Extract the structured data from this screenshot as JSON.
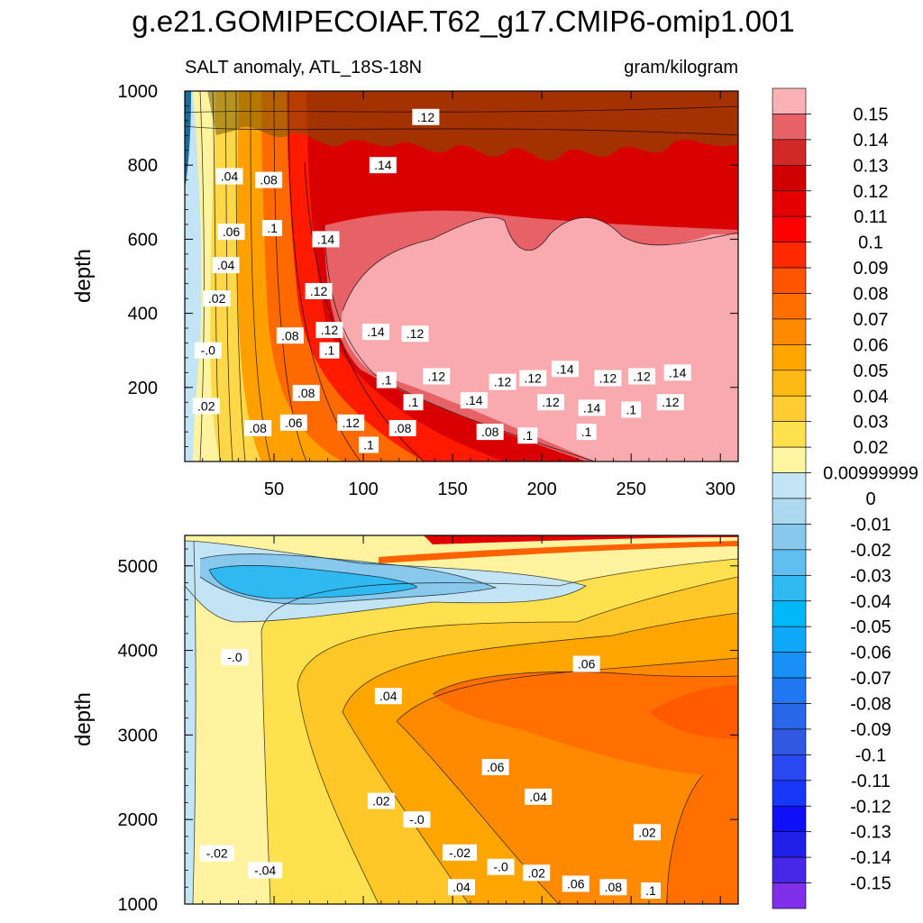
{
  "title": "g.e21.GOMIPECOIAF.T62_g17.CMIP6-omip1.001",
  "subtitle_left": "SALT anomaly, ATL_18S-18N",
  "subtitle_right": "gram/kilogram",
  "colors": {
    "background": "#ffffff",
    "frame": "#000000",
    "pink": "#f8aaae"
  },
  "colorbar": {
    "labels": [
      "0.15",
      "0.14",
      "0.13",
      "0.12",
      "0.11",
      "0.1",
      "0.09",
      "0.08",
      "0.07",
      "0.06",
      "0.05",
      "0.04",
      "0.03",
      "0.02",
      "0.00999999",
      "0",
      "-0.01",
      "-0.02",
      "-0.03",
      "-0.04",
      "-0.05",
      "-0.06",
      "-0.07",
      "-0.08",
      "-0.09",
      "-0.1",
      "-0.11",
      "-0.12",
      "-0.13",
      "-0.14",
      "-0.15"
    ],
    "colors": [
      "#fbb0b4",
      "#e66266",
      "#d12828",
      "#cf0000",
      "#e50000",
      "#ff0000",
      "#ff2a00",
      "#ff5400",
      "#ff6f00",
      "#ff8a00",
      "#ffa500",
      "#ffb914",
      "#ffcc33",
      "#ffe150",
      "#fff4a0",
      "#c3e4f4",
      "#acd8f0",
      "#88c8ec",
      "#60bef0",
      "#30b8f0",
      "#00b8f8",
      "#10a8f8",
      "#1890f8",
      "#2078f0",
      "#2868e8",
      "#3058e0",
      "#2848f0",
      "#1838f8",
      "#1010f8",
      "#2020e8",
      "#4828e8",
      "#8030e8"
    ]
  },
  "chart_data": [
    {
      "type": "contour",
      "panel": "upper",
      "xlabel": "",
      "ylabel": "depth",
      "xlim": [
        0,
        310
      ],
      "ylim": [
        1000,
        0
      ],
      "xticks": [
        "50",
        "100",
        "150",
        "200",
        "250",
        "300"
      ],
      "yticks": [
        "200",
        "400",
        "600",
        "800",
        "1000"
      ],
      "contour_labels": [
        {
          "text": ".1",
          "x": 103,
          "y": 45
        },
        {
          "text": ".08",
          "x": 41,
          "y": 90
        },
        {
          "text": ".06",
          "x": 61,
          "y": 105
        },
        {
          "text": ".12",
          "x": 93,
          "y": 105
        },
        {
          "text": ".08",
          "x": 122,
          "y": 90
        },
        {
          "text": ".08",
          "x": 171,
          "y": 80
        },
        {
          "text": ".1",
          "x": 192,
          "y": 70
        },
        {
          "text": ".1",
          "x": 225,
          "y": 80
        },
        {
          "text": ".02",
          "x": 12,
          "y": 150
        },
        {
          "text": ".1",
          "x": 128,
          "y": 160
        },
        {
          "text": ".14",
          "x": 162,
          "y": 165
        },
        {
          "text": ".12",
          "x": 205,
          "y": 160
        },
        {
          "text": ".14",
          "x": 228,
          "y": 145
        },
        {
          "text": ".1",
          "x": 250,
          "y": 140
        },
        {
          "text": ".12",
          "x": 272,
          "y": 160
        },
        {
          "text": ".08",
          "x": 68,
          "y": 185
        },
        {
          "text": ".1",
          "x": 113,
          "y": 220
        },
        {
          "text": ".12",
          "x": 141,
          "y": 230
        },
        {
          "text": ".12",
          "x": 178,
          "y": 215
        },
        {
          "text": ".12",
          "x": 195,
          "y": 225
        },
        {
          "text": ".12",
          "x": 237,
          "y": 225
        },
        {
          "text": ".12",
          "x": 256,
          "y": 230
        },
        {
          "text": ".14",
          "x": 276,
          "y": 240
        },
        {
          "text": ".14",
          "x": 213,
          "y": 250
        },
        {
          "text": "-.0",
          "x": 13,
          "y": 300
        },
        {
          "text": ".1",
          "x": 81,
          "y": 300
        },
        {
          "text": ".08",
          "x": 59,
          "y": 340
        },
        {
          "text": ".12",
          "x": 81,
          "y": 355
        },
        {
          "text": ".14",
          "x": 107,
          "y": 350
        },
        {
          "text": ".12",
          "x": 129,
          "y": 345
        },
        {
          "text": ".02",
          "x": 18,
          "y": 440
        },
        {
          "text": ".12",
          "x": 75,
          "y": 460
        },
        {
          "text": ".04",
          "x": 23,
          "y": 530
        },
        {
          "text": ".14",
          "x": 79,
          "y": 600
        },
        {
          "text": ".06",
          "x": 26,
          "y": 620
        },
        {
          "text": ".1",
          "x": 49,
          "y": 630
        },
        {
          "text": ".04",
          "x": 25,
          "y": 770
        },
        {
          "text": ".08",
          "x": 47,
          "y": 760
        },
        {
          "text": ".14",
          "x": 111,
          "y": 800
        },
        {
          "text": ".12",
          "x": 135,
          "y": 930
        }
      ]
    },
    {
      "type": "contour",
      "panel": "lower",
      "xlabel": "",
      "ylabel": "depth",
      "xlim": [
        0,
        310
      ],
      "ylim": [
        5360,
        1000
      ],
      "yticks": [
        "1000",
        "2000",
        "3000",
        "4000",
        "5000"
      ],
      "contour_labels": [
        {
          "text": ".04",
          "x": 155,
          "y": 1200
        },
        {
          "text": ".06",
          "x": 219,
          "y": 1240
        },
        {
          "text": ".08",
          "x": 240,
          "y": 1200
        },
        {
          "text": ".1",
          "x": 261,
          "y": 1160
        },
        {
          "text": "-.04",
          "x": 45,
          "y": 1400
        },
        {
          "text": "-.0",
          "x": 177,
          "y": 1440
        },
        {
          "text": ".02",
          "x": 197,
          "y": 1370
        },
        {
          "text": "-.02",
          "x": 18,
          "y": 1600
        },
        {
          "text": "-.02",
          "x": 154,
          "y": 1610
        },
        {
          "text": ".02",
          "x": 259,
          "y": 1850
        },
        {
          "text": "-.0",
          "x": 130,
          "y": 2000
        },
        {
          "text": ".02",
          "x": 110,
          "y": 2220
        },
        {
          "text": ".04",
          "x": 198,
          "y": 2270
        },
        {
          "text": ".06",
          "x": 174,
          "y": 2620
        },
        {
          "text": ".04",
          "x": 114,
          "y": 3460
        },
        {
          "text": ".06",
          "x": 225,
          "y": 3840
        },
        {
          "text": "-.0",
          "x": 28,
          "y": 3920
        }
      ]
    }
  ]
}
